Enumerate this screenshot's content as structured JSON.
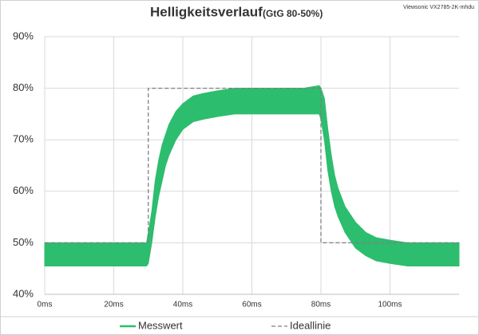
{
  "chart_data": {
    "type": "line",
    "title": "Helligkeitsverlauf",
    "subtitle": "(GtG 80-50%)",
    "annotation": "Viewsonic VX2785-2K-mhdu",
    "xlim": [
      0,
      120
    ],
    "ylim": [
      40,
      90
    ],
    "xticks": [
      {
        "value": 0,
        "label": "0ms"
      },
      {
        "value": 20,
        "label": "20ms"
      },
      {
        "value": 40,
        "label": "40ms"
      },
      {
        "value": 60,
        "label": "60ms"
      },
      {
        "value": 80,
        "label": "80ms"
      },
      {
        "value": 100,
        "label": "100ms"
      }
    ],
    "yticks": [
      {
        "value": 40,
        "label": "40%"
      },
      {
        "value": 50,
        "label": "50%"
      },
      {
        "value": 60,
        "label": "60%"
      },
      {
        "value": 70,
        "label": "70%"
      },
      {
        "value": 80,
        "label": "80%"
      },
      {
        "value": 90,
        "label": "90%"
      }
    ],
    "grid": true,
    "series": [
      {
        "name": "Messwert",
        "color": "#2dbd6e",
        "x": [
          0,
          29.5,
          30,
          31,
          32,
          33,
          34,
          35,
          36,
          38,
          40,
          43,
          46,
          50,
          55,
          60,
          65,
          70,
          75,
          79.5,
          80,
          81,
          82,
          83,
          84,
          85,
          87,
          90,
          93,
          96,
          100,
          105,
          110,
          115,
          120
        ],
        "high": [
          50,
          50,
          52,
          56,
          62,
          66,
          69,
          71,
          73,
          75.5,
          77,
          78.5,
          79,
          79.5,
          80,
          80,
          80,
          80,
          80,
          80.5,
          80,
          78,
          72,
          67,
          63,
          60.5,
          57,
          54,
          52,
          51,
          50.5,
          50,
          50,
          50,
          50
        ],
        "low": [
          45.5,
          45.5,
          46,
          50,
          55,
          59,
          62,
          65,
          67,
          70,
          72,
          73.5,
          74,
          74.5,
          75,
          75,
          75,
          75,
          75,
          75,
          74,
          70,
          64,
          60,
          57,
          55,
          52,
          49,
          47.5,
          46.5,
          46,
          45.5,
          45.5,
          45.5,
          45.5
        ]
      },
      {
        "name": "Ideallinie",
        "color": "#7f7f7f",
        "dashed": true,
        "x": [
          0,
          30,
          30,
          80,
          80,
          120
        ],
        "values": [
          50,
          50,
          80,
          80,
          50,
          50
        ]
      }
    ]
  }
}
